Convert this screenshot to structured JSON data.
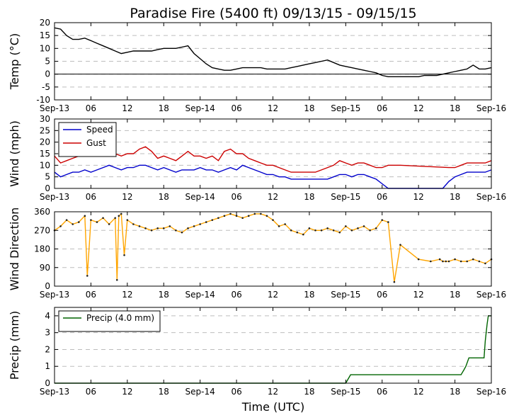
{
  "title": "Paradise Fire (5400 ft) 09/13/15 - 09/15/15",
  "xlabel": "Time (UTC)",
  "x_tick_labels": [
    "Sep-13",
    "06",
    "12",
    "18",
    "Sep-14",
    "06",
    "12",
    "18",
    "Sep-15",
    "06",
    "12",
    "18",
    "Sep-16"
  ],
  "colors": {
    "temperature": "#000000",
    "speed": "#0000cc",
    "gust": "#cc0000",
    "direction": "#ffa500",
    "precip": "#006400",
    "grid": "#bdbdbd"
  },
  "chart_data": [
    {
      "type": "line",
      "ylabel": "Temp (°C)",
      "ylim": [
        -10,
        20
      ],
      "yticks": [
        -10,
        -5,
        0,
        5,
        10,
        15,
        20
      ],
      "xlim": [
        0,
        72
      ],
      "grid": true,
      "zero_line": true,
      "series": [
        {
          "x": [
            0,
            1,
            2,
            3,
            4,
            5,
            6,
            7,
            8,
            9,
            10,
            11,
            12,
            13,
            14,
            15,
            16,
            17,
            18,
            19,
            20,
            21,
            22,
            23,
            24,
            25,
            26,
            27,
            28,
            29,
            30,
            31,
            32,
            33,
            34,
            35,
            36,
            37,
            38,
            39,
            40,
            41,
            42,
            43,
            44,
            45,
            46,
            47,
            48,
            49,
            50,
            51,
            52,
            53,
            54,
            55,
            56,
            57,
            58,
            59,
            60,
            61,
            62,
            63,
            64,
            65,
            66,
            67,
            68,
            69,
            70,
            71,
            72
          ],
          "values": [
            18,
            17.5,
            15,
            13.5,
            13.5,
            14,
            13,
            12,
            11,
            10,
            9,
            8,
            8.5,
            9,
            9,
            9,
            9,
            9.5,
            10,
            10,
            10,
            10.5,
            11,
            8,
            6,
            4,
            2.5,
            2,
            1.5,
            1.5,
            2,
            2.5,
            2.5,
            2.5,
            2.5,
            2,
            2,
            2,
            2,
            2.5,
            3,
            3.5,
            4,
            4.5,
            5,
            5.5,
            4.5,
            3.5,
            3,
            2.5,
            2,
            1.5,
            1,
            0.5,
            -0.5,
            -1,
            -1,
            -1,
            -1,
            -1,
            -1,
            -0.5,
            -0.5,
            -0.5,
            0,
            0.5,
            1,
            1.5,
            2,
            3.5,
            2,
            2,
            2.5
          ]
        }
      ]
    },
    {
      "type": "line",
      "ylabel": "Wind (mph)",
      "ylim": [
        0,
        30
      ],
      "yticks": [
        0,
        5,
        10,
        15,
        20,
        25,
        30
      ],
      "xlim": [
        0,
        72
      ],
      "grid": true,
      "legend": "top-left",
      "series": [
        {
          "name": "Speed",
          "x": [
            0,
            1,
            2,
            3,
            4,
            5,
            6,
            7,
            8,
            9,
            10,
            11,
            12,
            13,
            14,
            15,
            16,
            17,
            18,
            19,
            20,
            21,
            22,
            23,
            24,
            25,
            26,
            27,
            28,
            29,
            30,
            31,
            32,
            33,
            34,
            35,
            36,
            37,
            38,
            39,
            40,
            41,
            42,
            43,
            44,
            45,
            46,
            47,
            48,
            49,
            50,
            51,
            52,
            53,
            54,
            55,
            56,
            57,
            58,
            59,
            60,
            61,
            62,
            63,
            64,
            65,
            66,
            67,
            68,
            69,
            70,
            71,
            72
          ],
          "values": [
            7,
            5,
            6,
            7,
            7,
            8,
            7,
            8,
            9,
            10,
            9,
            8,
            9,
            9,
            10,
            10,
            9,
            8,
            9,
            8,
            7,
            8,
            8,
            8,
            9,
            8,
            8,
            7,
            8,
            9,
            8,
            10,
            9,
            8,
            7,
            6,
            6,
            5,
            5,
            4,
            4,
            4,
            4,
            4,
            4,
            4,
            5,
            6,
            6,
            5,
            6,
            6,
            5,
            4,
            2,
            0,
            0,
            0,
            0,
            0,
            0,
            0,
            0,
            0,
            0,
            3,
            5,
            6,
            7,
            7,
            7,
            7,
            8
          ]
        },
        {
          "name": "Gust",
          "x": [
            0,
            1,
            2,
            3,
            4,
            5,
            6,
            7,
            8,
            9,
            10,
            11,
            12,
            13,
            14,
            15,
            16,
            17,
            18,
            19,
            20,
            21,
            22,
            23,
            24,
            25,
            26,
            27,
            28,
            29,
            30,
            31,
            32,
            33,
            34,
            35,
            36,
            37,
            38,
            39,
            40,
            41,
            42,
            43,
            44,
            45,
            46,
            47,
            48,
            49,
            50,
            51,
            52,
            53,
            54,
            55,
            56,
            57,
            65,
            66,
            67,
            68,
            69,
            70,
            71,
            72
          ],
          "values": [
            14,
            11,
            12,
            13,
            14,
            14,
            14,
            15,
            16,
            16,
            15,
            14,
            15,
            15,
            17,
            18,
            16,
            13,
            14,
            13,
            12,
            14,
            16,
            14,
            14,
            13,
            14,
            12,
            16,
            17,
            15,
            15,
            13,
            12,
            11,
            10,
            10,
            9,
            8,
            7,
            7,
            7,
            7,
            7,
            8,
            9,
            10,
            12,
            11,
            10,
            11,
            11,
            10,
            9,
            9,
            10,
            10,
            10,
            9,
            9,
            10,
            11,
            11,
            11,
            11,
            12
          ]
        }
      ]
    },
    {
      "type": "line",
      "ylabel": "Wind Direction",
      "ylim": [
        0,
        360
      ],
      "yticks": [
        0,
        90,
        180,
        270,
        360
      ],
      "xlim": [
        0,
        72
      ],
      "grid": true,
      "series": [
        {
          "x": [
            0,
            1,
            2,
            3,
            4,
            5,
            5.4,
            6,
            7,
            8,
            9,
            10,
            10.3,
            10.6,
            11,
            11.5,
            12,
            13,
            14,
            15,
            16,
            17,
            18,
            19,
            20,
            21,
            22,
            23,
            24,
            25,
            26,
            27,
            28,
            29,
            30,
            31,
            32,
            33,
            34,
            35,
            36,
            37,
            38,
            39,
            40,
            41,
            42,
            43,
            44,
            45,
            46,
            47,
            48,
            49,
            50,
            51,
            52,
            53,
            54,
            55,
            56,
            57,
            60,
            62,
            63.5,
            64,
            64.5,
            65,
            66,
            67,
            68,
            69,
            70,
            71,
            72
          ],
          "values": [
            270,
            290,
            320,
            300,
            310,
            340,
            50,
            320,
            310,
            330,
            300,
            330,
            30,
            340,
            350,
            150,
            320,
            300,
            290,
            280,
            270,
            280,
            280,
            290,
            270,
            260,
            280,
            290,
            300,
            310,
            320,
            330,
            340,
            350,
            340,
            330,
            340,
            350,
            350,
            340,
            320,
            290,
            300,
            270,
            260,
            250,
            280,
            270,
            270,
            280,
            270,
            260,
            290,
            270,
            280,
            290,
            270,
            280,
            320,
            310,
            20,
            200,
            130,
            120,
            130,
            120,
            120,
            120,
            130,
            120,
            120,
            130,
            120,
            110,
            130
          ]
        }
      ]
    },
    {
      "type": "line",
      "ylabel": "Precip (mm)",
      "ylim": [
        0,
        4.5
      ],
      "yticks": [
        0,
        1,
        2,
        3,
        4
      ],
      "xlim": [
        0,
        72
      ],
      "grid": true,
      "legend": "top-left",
      "series": [
        {
          "name": "Precip (4.0 mm)",
          "x": [
            0,
            48,
            48.8,
            67,
            67.5,
            67.8,
            68.3,
            70.8,
            71.0,
            71.3,
            71.5,
            72
          ],
          "values": [
            0,
            0,
            0.5,
            0.5,
            0.8,
            1.0,
            1.5,
            1.5,
            2.5,
            3.5,
            4.0,
            4.0
          ]
        }
      ]
    }
  ]
}
